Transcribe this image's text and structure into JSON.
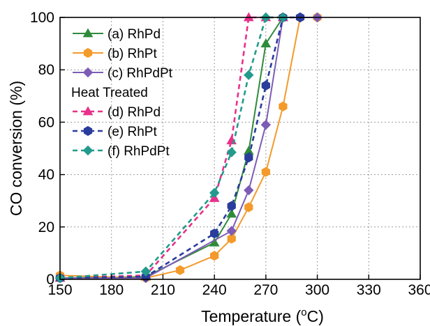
{
  "chart_data": {
    "type": "line",
    "xlabel": "Temperature (",
    "xlabel_super": "o",
    "xlabel_end": "C)",
    "ylabel": "CO conversion (%)",
    "xlim": [
      150,
      360
    ],
    "ylim": [
      0,
      100
    ],
    "xticks": [
      150,
      180,
      210,
      240,
      270,
      300,
      330,
      360
    ],
    "yticks": [
      0,
      20,
      40,
      60,
      80,
      100
    ],
    "grid": true,
    "legend_position": "top-left",
    "legend_group_title": "Heat Treated",
    "series": [
      {
        "name": "(a) RhPd",
        "color": "#2e8b3a",
        "dash": "solid",
        "marker": "triangle",
        "x": [
          150,
          200,
          240,
          250,
          260,
          270,
          280
        ],
        "y": [
          0.5,
          1,
          14,
          25,
          49,
          90,
          100
        ]
      },
      {
        "name": "(b) RhPt",
        "color": "#f39a2b",
        "dash": "solid",
        "marker": "hexagon",
        "x": [
          150,
          200,
          220,
          240,
          250,
          260,
          270,
          280,
          290,
          300
        ],
        "y": [
          1.5,
          0.5,
          3.5,
          9,
          15.5,
          27.5,
          41,
          66,
          100,
          100
        ]
      },
      {
        "name": "(c) RhPdPt",
        "color": "#7d5cb6",
        "dash": "solid",
        "marker": "diamond",
        "x": [
          150,
          200,
          250,
          260,
          270,
          280,
          290,
          300
        ],
        "y": [
          0.5,
          0.5,
          18.5,
          34,
          59,
          100,
          100,
          100
        ]
      },
      {
        "name": "(d) RhPd",
        "color": "#e8318b",
        "dash": "dashed",
        "marker": "triangle",
        "x": [
          150,
          200,
          240,
          250,
          260,
          270,
          280
        ],
        "y": [
          0.5,
          1.5,
          31,
          53,
          100,
          100,
          100
        ]
      },
      {
        "name": "(e) RhPt",
        "color": "#2a3c9c",
        "dash": "dashed",
        "marker": "hexagon",
        "x": [
          150,
          200,
          240,
          250,
          260,
          270,
          280,
          290
        ],
        "y": [
          0.5,
          1,
          17.5,
          28,
          46.5,
          74,
          100,
          100
        ]
      },
      {
        "name": "(f) RhPdPt",
        "color": "#239b8c",
        "dash": "dashed",
        "marker": "diamond",
        "x": [
          150,
          200,
          240,
          250,
          260,
          270,
          280
        ],
        "y": [
          0.5,
          3,
          33,
          48.5,
          78,
          100,
          100
        ]
      }
    ]
  }
}
